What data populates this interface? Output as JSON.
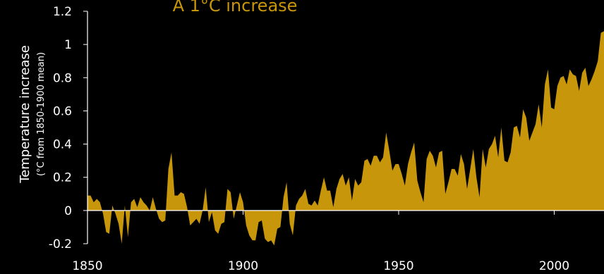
{
  "chart_data": {
    "type": "area",
    "title": "A 1°C increase",
    "ylabel": "Temperature increase",
    "ylabel_sub": "(°C from 1850-1900 mean)",
    "xlabel": "",
    "xlim": [
      1850,
      2016
    ],
    "ylim": [
      -0.2,
      1.2
    ],
    "x_ticks": [
      "1850",
      "1900",
      "1950",
      "2000"
    ],
    "y_ticks": [
      "-0.2",
      "0",
      "0.2",
      "0.4",
      "0.6",
      "0.8",
      "1",
      "1.2"
    ],
    "grid": false,
    "fill_color": "#c8960a",
    "x": [
      1850,
      1851,
      1852,
      1853,
      1854,
      1855,
      1856,
      1857,
      1858,
      1859,
      1860,
      1861,
      1862,
      1863,
      1864,
      1865,
      1866,
      1867,
      1868,
      1869,
      1870,
      1871,
      1872,
      1873,
      1874,
      1875,
      1876,
      1877,
      1878,
      1879,
      1880,
      1881,
      1882,
      1883,
      1884,
      1885,
      1886,
      1887,
      1888,
      1889,
      1890,
      1891,
      1892,
      1893,
      1894,
      1895,
      1896,
      1897,
      1898,
      1899,
      1900,
      1901,
      1902,
      1903,
      1904,
      1905,
      1906,
      1907,
      1908,
      1909,
      1910,
      1911,
      1912,
      1913,
      1914,
      1915,
      1916,
      1917,
      1918,
      1919,
      1920,
      1921,
      1922,
      1923,
      1924,
      1925,
      1926,
      1927,
      1928,
      1929,
      1930,
      1931,
      1932,
      1933,
      1934,
      1935,
      1936,
      1937,
      1938,
      1939,
      1940,
      1941,
      1942,
      1943,
      1944,
      1945,
      1946,
      1947,
      1948,
      1949,
      1950,
      1951,
      1952,
      1953,
      1954,
      1955,
      1956,
      1957,
      1958,
      1959,
      1960,
      1961,
      1962,
      1963,
      1964,
      1965,
      1966,
      1967,
      1968,
      1969,
      1970,
      1971,
      1972,
      1973,
      1974,
      1975,
      1976,
      1977,
      1978,
      1979,
      1980,
      1981,
      1982,
      1983,
      1984,
      1985,
      1986,
      1987,
      1988,
      1989,
      1990,
      1991,
      1992,
      1993,
      1994,
      1995,
      1996,
      1997,
      1998,
      1999,
      2000,
      2001,
      2002,
      2003,
      2004,
      2005,
      2006,
      2007,
      2008,
      2009,
      2010,
      2011,
      2012,
      2013,
      2014,
      2015,
      2016
    ],
    "values": [
      0.09,
      0.09,
      0.05,
      0.07,
      0.05,
      -0.02,
      -0.13,
      -0.14,
      0.03,
      -0.02,
      -0.08,
      -0.2,
      0.03,
      -0.16,
      0.05,
      0.07,
      0.02,
      0.08,
      0.05,
      0.03,
      0.0,
      0.08,
      0.01,
      -0.05,
      -0.07,
      -0.06,
      0.25,
      0.35,
      0.09,
      0.09,
      0.11,
      0.1,
      0.02,
      -0.09,
      -0.07,
      -0.05,
      -0.08,
      0.0,
      0.14,
      -0.07,
      -0.01,
      -0.12,
      -0.14,
      -0.08,
      -0.07,
      0.13,
      0.11,
      -0.05,
      0.03,
      0.11,
      0.05,
      -0.09,
      -0.15,
      -0.18,
      -0.18,
      -0.07,
      -0.06,
      -0.17,
      -0.19,
      -0.18,
      -0.21,
      -0.11,
      -0.1,
      0.08,
      0.17,
      -0.08,
      -0.15,
      0.03,
      0.07,
      0.09,
      0.13,
      0.04,
      0.03,
      0.06,
      0.03,
      0.12,
      0.2,
      0.12,
      0.12,
      0.02,
      0.13,
      0.19,
      0.22,
      0.15,
      0.2,
      0.06,
      0.19,
      0.15,
      0.17,
      0.3,
      0.31,
      0.27,
      0.33,
      0.33,
      0.29,
      0.32,
      0.47,
      0.36,
      0.24,
      0.28,
      0.28,
      0.22,
      0.15,
      0.28,
      0.35,
      0.41,
      0.18,
      0.11,
      0.05,
      0.31,
      0.36,
      0.33,
      0.26,
      0.35,
      0.36,
      0.1,
      0.17,
      0.25,
      0.25,
      0.21,
      0.34,
      0.28,
      0.13,
      0.25,
      0.37,
      0.2,
      0.08,
      0.37,
      0.26,
      0.37,
      0.4,
      0.45,
      0.32,
      0.5,
      0.3,
      0.29,
      0.35,
      0.5,
      0.51,
      0.44,
      0.61,
      0.56,
      0.42,
      0.47,
      0.52,
      0.64,
      0.5,
      0.76,
      0.85,
      0.62,
      0.61,
      0.75,
      0.8,
      0.81,
      0.76,
      0.85,
      0.82,
      0.81,
      0.72,
      0.83,
      0.86,
      0.75,
      0.79,
      0.84,
      0.9,
      1.07,
      1.08
    ]
  }
}
